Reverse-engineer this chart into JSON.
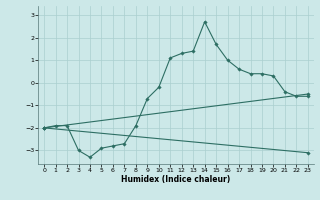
{
  "title": "",
  "xlabel": "Humidex (Indice chaleur)",
  "bg_color": "#cce8e8",
  "line_color": "#2d6e63",
  "xlim": [
    -0.5,
    23.5
  ],
  "ylim": [
    -3.6,
    3.4
  ],
  "xticks": [
    0,
    1,
    2,
    3,
    4,
    5,
    6,
    7,
    8,
    9,
    10,
    11,
    12,
    13,
    14,
    15,
    16,
    17,
    18,
    19,
    20,
    21,
    22,
    23
  ],
  "yticks": [
    -3,
    -2,
    -1,
    0,
    1,
    2,
    3
  ],
  "line1_x": [
    0,
    1,
    2,
    3,
    4,
    5,
    6,
    7,
    8,
    9,
    10,
    11,
    12,
    13,
    14,
    15,
    16,
    17,
    18,
    19,
    20,
    21,
    22,
    23
  ],
  "line1_y": [
    -2.0,
    -1.9,
    -1.9,
    -3.0,
    -3.3,
    -2.9,
    -2.8,
    -2.7,
    -1.9,
    -0.7,
    -0.2,
    1.1,
    1.3,
    1.4,
    2.7,
    1.7,
    1.0,
    0.6,
    0.4,
    0.4,
    0.3,
    -0.4,
    -0.6,
    -0.6
  ],
  "line2_x": [
    0,
    23
  ],
  "line2_y": [
    -2.0,
    -0.5
  ],
  "line3_x": [
    0,
    23
  ],
  "line3_y": [
    -2.0,
    -3.1
  ],
  "grid_color": "#aacfcf",
  "marker": "D",
  "markersize": 1.8,
  "linewidth": 0.8,
  "tick_fontsize": 4.5,
  "xlabel_fontsize": 5.5
}
